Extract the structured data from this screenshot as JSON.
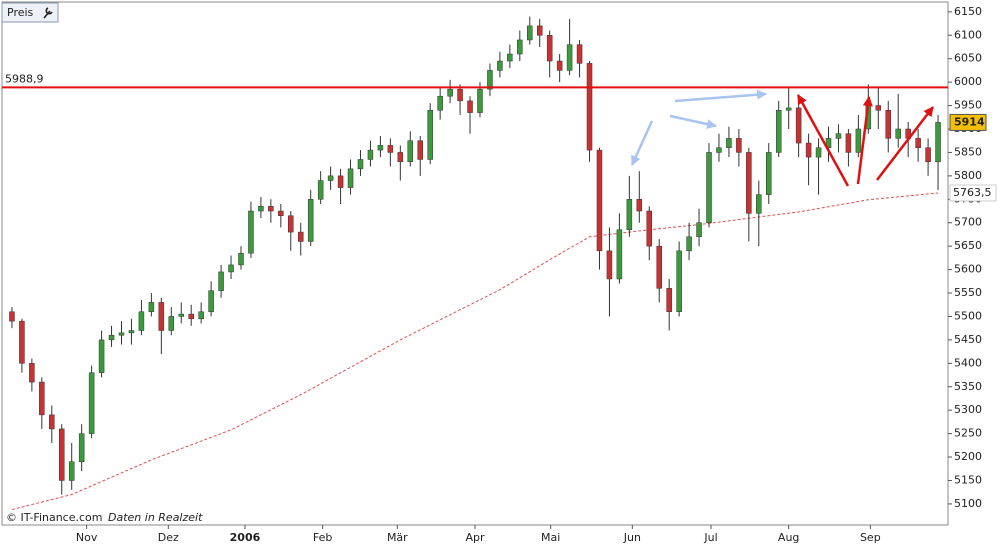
{
  "chart_data": {
    "type": "candlestick",
    "legend_label": "Preis",
    "footer": "© IT-Finance.com",
    "footer_note": "Daten in Realzeit",
    "up_color": "#3c9a3c",
    "down_color": "#c83232",
    "wick_color": "#333333",
    "ylim": [
      5055,
      6171
    ],
    "yticks": [
      5100,
      5150,
      5200,
      5250,
      5300,
      5350,
      5400,
      5450,
      5500,
      5550,
      5600,
      5650,
      5700,
      5750,
      5800,
      5850,
      5900,
      5950,
      6000,
      6050,
      6100,
      6150
    ],
    "xlim": [
      -1,
      94
    ],
    "xticks": [
      {
        "value": 7.5,
        "label": "Nov"
      },
      {
        "value": 15.7,
        "label": "Dez"
      },
      {
        "value": 23.4,
        "label": "2006"
      },
      {
        "value": 31.2,
        "label": "Feb"
      },
      {
        "value": 38.7,
        "label": "Mär"
      },
      {
        "value": 46.5,
        "label": "Apr"
      },
      {
        "value": 54.1,
        "label": "Mai"
      },
      {
        "value": 62.3,
        "label": "Jun"
      },
      {
        "value": 70.2,
        "label": "Jul"
      },
      {
        "value": 78,
        "label": "Aug"
      },
      {
        "value": 86.2,
        "label": "Sep"
      }
    ],
    "open": [
      5510,
      5490,
      5400,
      5360,
      5290,
      5260,
      5150,
      5190,
      5250,
      5380,
      5450,
      5460,
      5465,
      5470,
      5510,
      5530,
      5470,
      5500,
      5505,
      5495,
      5510,
      5555,
      5595,
      5610,
      5635,
      5725,
      5735,
      5725,
      5715,
      5680,
      5660,
      5750,
      5790,
      5800,
      5775,
      5815,
      5835,
      5855,
      5865,
      5850,
      5830,
      5875,
      5835,
      5940,
      5970,
      5985,
      5960,
      5935,
      5985,
      6025,
      6045,
      6060,
      6090,
      6120,
      6100,
      6045,
      6025,
      6080,
      6040,
      5855,
      5640,
      5580,
      5685,
      5750,
      5725,
      5650,
      5560,
      5510,
      5640,
      5670,
      5700,
      5850,
      5860,
      5880,
      5850,
      5720,
      5760,
      5850,
      5940,
      5945,
      5870,
      5840,
      5860,
      5880,
      5890,
      5850,
      5900,
      5950,
      5940,
      5880,
      5900,
      5880,
      5860,
      5830
    ],
    "high": [
      5520,
      5495,
      5410,
      5370,
      5310,
      5270,
      5230,
      5270,
      5395,
      5470,
      5480,
      5490,
      5495,
      5535,
      5550,
      5540,
      5520,
      5530,
      5525,
      5530,
      5575,
      5610,
      5630,
      5650,
      5745,
      5755,
      5750,
      5740,
      5725,
      5700,
      5770,
      5810,
      5820,
      5815,
      5835,
      5855,
      5875,
      5885,
      5880,
      5865,
      5895,
      5885,
      5955,
      5990,
      6005,
      5995,
      5970,
      6000,
      6040,
      6065,
      6080,
      6110,
      6140,
      6135,
      6110,
      6060,
      6135,
      6090,
      6045,
      5860,
      5690,
      5720,
      5800,
      5810,
      5735,
      5665,
      5580,
      5660,
      5700,
      5730,
      5870,
      5890,
      5905,
      5900,
      5860,
      5790,
      5870,
      5960,
      5990,
      5955,
      5890,
      5880,
      5905,
      5910,
      5900,
      5930,
      5995,
      5990,
      5960,
      5975,
      5915,
      5900,
      5880,
      5930
    ],
    "low": [
      5475,
      5380,
      5340,
      5260,
      5230,
      5120,
      5130,
      5170,
      5240,
      5370,
      5435,
      5440,
      5440,
      5460,
      5500,
      5420,
      5460,
      5485,
      5480,
      5485,
      5500,
      5540,
      5580,
      5600,
      5625,
      5710,
      5700,
      5690,
      5640,
      5630,
      5650,
      5740,
      5770,
      5740,
      5760,
      5800,
      5820,
      5840,
      5820,
      5790,
      5820,
      5800,
      5825,
      5920,
      5955,
      5930,
      5890,
      5925,
      5970,
      6010,
      6030,
      6045,
      6080,
      6075,
      6010,
      6000,
      6015,
      6010,
      5830,
      5600,
      5500,
      5570,
      5670,
      5700,
      5620,
      5530,
      5470,
      5500,
      5620,
      5650,
      5690,
      5830,
      5840,
      5820,
      5660,
      5650,
      5740,
      5840,
      5900,
      5840,
      5780,
      5760,
      5830,
      5850,
      5820,
      5840,
      5890,
      5900,
      5850,
      5860,
      5840,
      5830,
      5800,
      5770
    ],
    "close": [
      5490,
      5400,
      5360,
      5290,
      5260,
      5150,
      5190,
      5250,
      5380,
      5450,
      5460,
      5465,
      5470,
      5510,
      5530,
      5470,
      5500,
      5505,
      5495,
      5510,
      5555,
      5595,
      5610,
      5635,
      5725,
      5735,
      5725,
      5715,
      5680,
      5660,
      5750,
      5790,
      5800,
      5775,
      5815,
      5835,
      5855,
      5865,
      5850,
      5830,
      5875,
      5835,
      5940,
      5970,
      5985,
      5960,
      5935,
      5985,
      6025,
      6045,
      6060,
      6090,
      6120,
      6100,
      6045,
      6025,
      6080,
      6040,
      5855,
      5640,
      5580,
      5685,
      5750,
      5725,
      5650,
      5560,
      5510,
      5640,
      5670,
      5700,
      5850,
      5860,
      5880,
      5850,
      5720,
      5760,
      5850,
      5940,
      5945,
      5870,
      5840,
      5860,
      5880,
      5890,
      5850,
      5900,
      5950,
      5940,
      5880,
      5900,
      5880,
      5860,
      5830,
      5914
    ],
    "ma": {
      "color": "#e05050",
      "x": [
        0,
        6,
        14,
        22,
        29,
        39,
        49,
        54,
        58,
        64,
        69,
        79,
        86,
        93
      ],
      "values": [
        5088,
        5120,
        5194,
        5258,
        5333,
        5450,
        5557,
        5621,
        5670,
        5685,
        5696,
        5723,
        5749,
        5763.5
      ]
    },
    "ma_label": {
      "value": 5763.5,
      "label": "5763,5"
    },
    "resistance": {
      "value": 5988.9,
      "label": "5988,9",
      "color": "#e01010"
    },
    "last_price": 5914
  }
}
